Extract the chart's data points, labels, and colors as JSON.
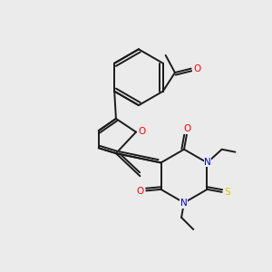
{
  "background_color": "#ebebeb",
  "bond_color": "#1a1a1a",
  "atom_colors": {
    "O": "#ff0000",
    "N": "#0000ee",
    "S": "#cccc00",
    "C": "#1a1a1a"
  },
  "figsize": [
    3.0,
    3.0
  ],
  "dpi": 100
}
